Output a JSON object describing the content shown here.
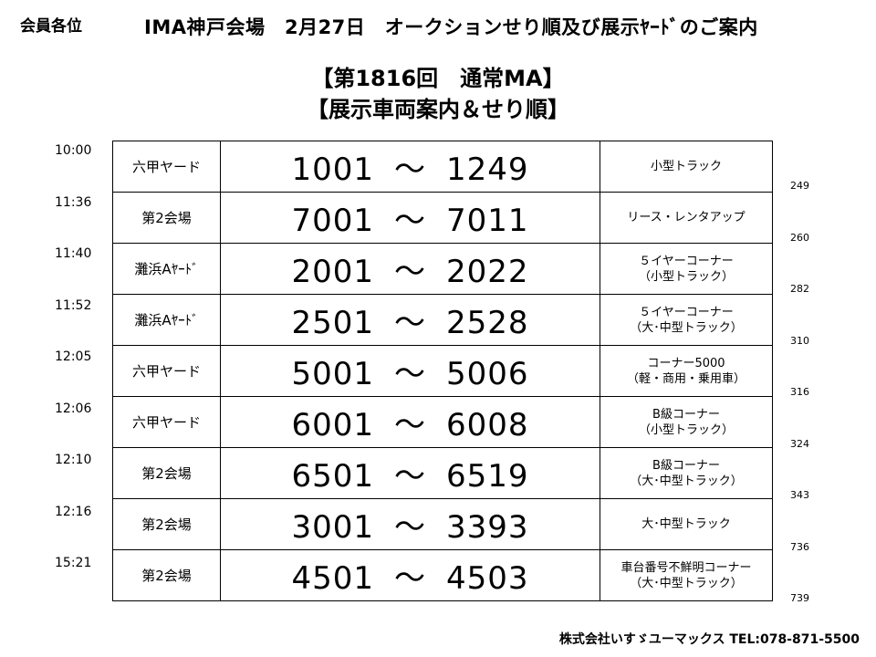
{
  "header": {
    "addressee": "会員各位",
    "title": "IMA神戸会場　2月27日　オークションせり順及び展示ﾔｰﾄﾞのご案内"
  },
  "session_title": "【第1816回　通常MA】",
  "subtitle": "【展示車両案内＆せり順】",
  "rows": [
    {
      "time": "10:00",
      "venue": "六甲ヤード",
      "start": "1001",
      "end": "1249",
      "category_line1": "小型トラック",
      "category_line2": "",
      "cumulative": "249"
    },
    {
      "time": "11:36",
      "venue": "第2会場",
      "start": "7001",
      "end": "7011",
      "category_line1": "リース・レンタアップ",
      "category_line2": "",
      "cumulative": "260"
    },
    {
      "time": "11:40",
      "venue": "灘浜Aﾔｰﾄﾞ",
      "start": "2001",
      "end": "2022",
      "category_line1": "５イヤーコーナー",
      "category_line2": "（小型トラック）",
      "cumulative": "282"
    },
    {
      "time": "11:52",
      "venue": "灘浜Aﾔｰﾄﾞ",
      "start": "2501",
      "end": "2528",
      "category_line1": "５イヤーコーナー",
      "category_line2": "（大･中型トラック）",
      "cumulative": "310"
    },
    {
      "time": "12:05",
      "venue": "六甲ヤード",
      "start": "5001",
      "end": "5006",
      "category_line1": "コーナー5000",
      "category_line2": "（軽・商用・乗用車）",
      "cumulative": "316"
    },
    {
      "time": "12:06",
      "venue": "六甲ヤード",
      "start": "6001",
      "end": "6008",
      "category_line1": "B級コーナー",
      "category_line2": "（小型トラック）",
      "cumulative": "324"
    },
    {
      "time": "12:10",
      "venue": "第2会場",
      "start": "6501",
      "end": "6519",
      "category_line1": "B級コーナー",
      "category_line2": "（大･中型トラック）",
      "cumulative": "343"
    },
    {
      "time": "12:16",
      "venue": "第2会場",
      "start": "3001",
      "end": "3393",
      "category_line1": "大･中型トラック",
      "category_line2": "",
      "cumulative": "736"
    },
    {
      "time": "15:21",
      "venue": "第2会場",
      "start": "4501",
      "end": "4503",
      "category_line1": "車台番号不鮮明コーナー",
      "category_line2": "（大･中型トラック）",
      "cumulative": "739"
    }
  ],
  "range_separator": "～",
  "footer": {
    "company": "株式会社いすゞユーマックス TEL:078-871-5500"
  }
}
